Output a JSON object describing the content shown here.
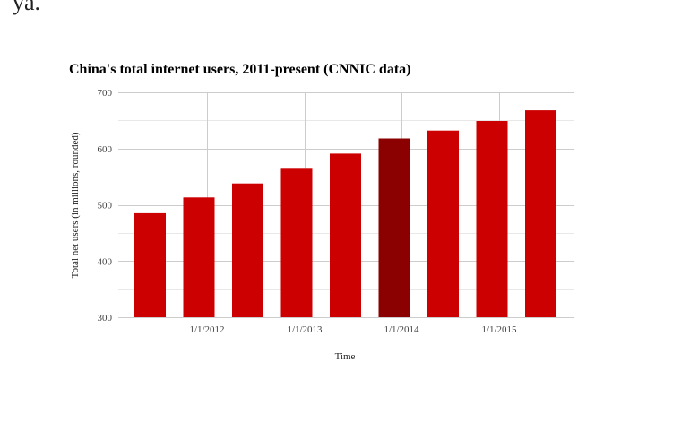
{
  "page": {
    "top_fragment": "ya."
  },
  "colors": {
    "bar": "#cc0000",
    "bar_highlight": "#8b0000",
    "grid_major": "#cccccc",
    "grid_minor": "#e8e8e8",
    "text": "#000000",
    "tick_text": "#444444"
  },
  "chart_data": {
    "type": "bar",
    "title": "China's total internet users, 2011-present (CNNIC data)",
    "xlabel": "Time",
    "ylabel": "Total net users (in millions, rounded)",
    "ylim": [
      300,
      700
    ],
    "y_ticks": [
      300,
      400,
      500,
      600,
      700
    ],
    "x_tick_labels": [
      "1/1/2012",
      "1/1/2013",
      "1/1/2014",
      "1/1/2015"
    ],
    "grid": true,
    "legend": "none",
    "series": [
      {
        "values": [
          485,
          513,
          538,
          564,
          591,
          618,
          632,
          649,
          668
        ],
        "highlight_index": 5
      }
    ]
  }
}
